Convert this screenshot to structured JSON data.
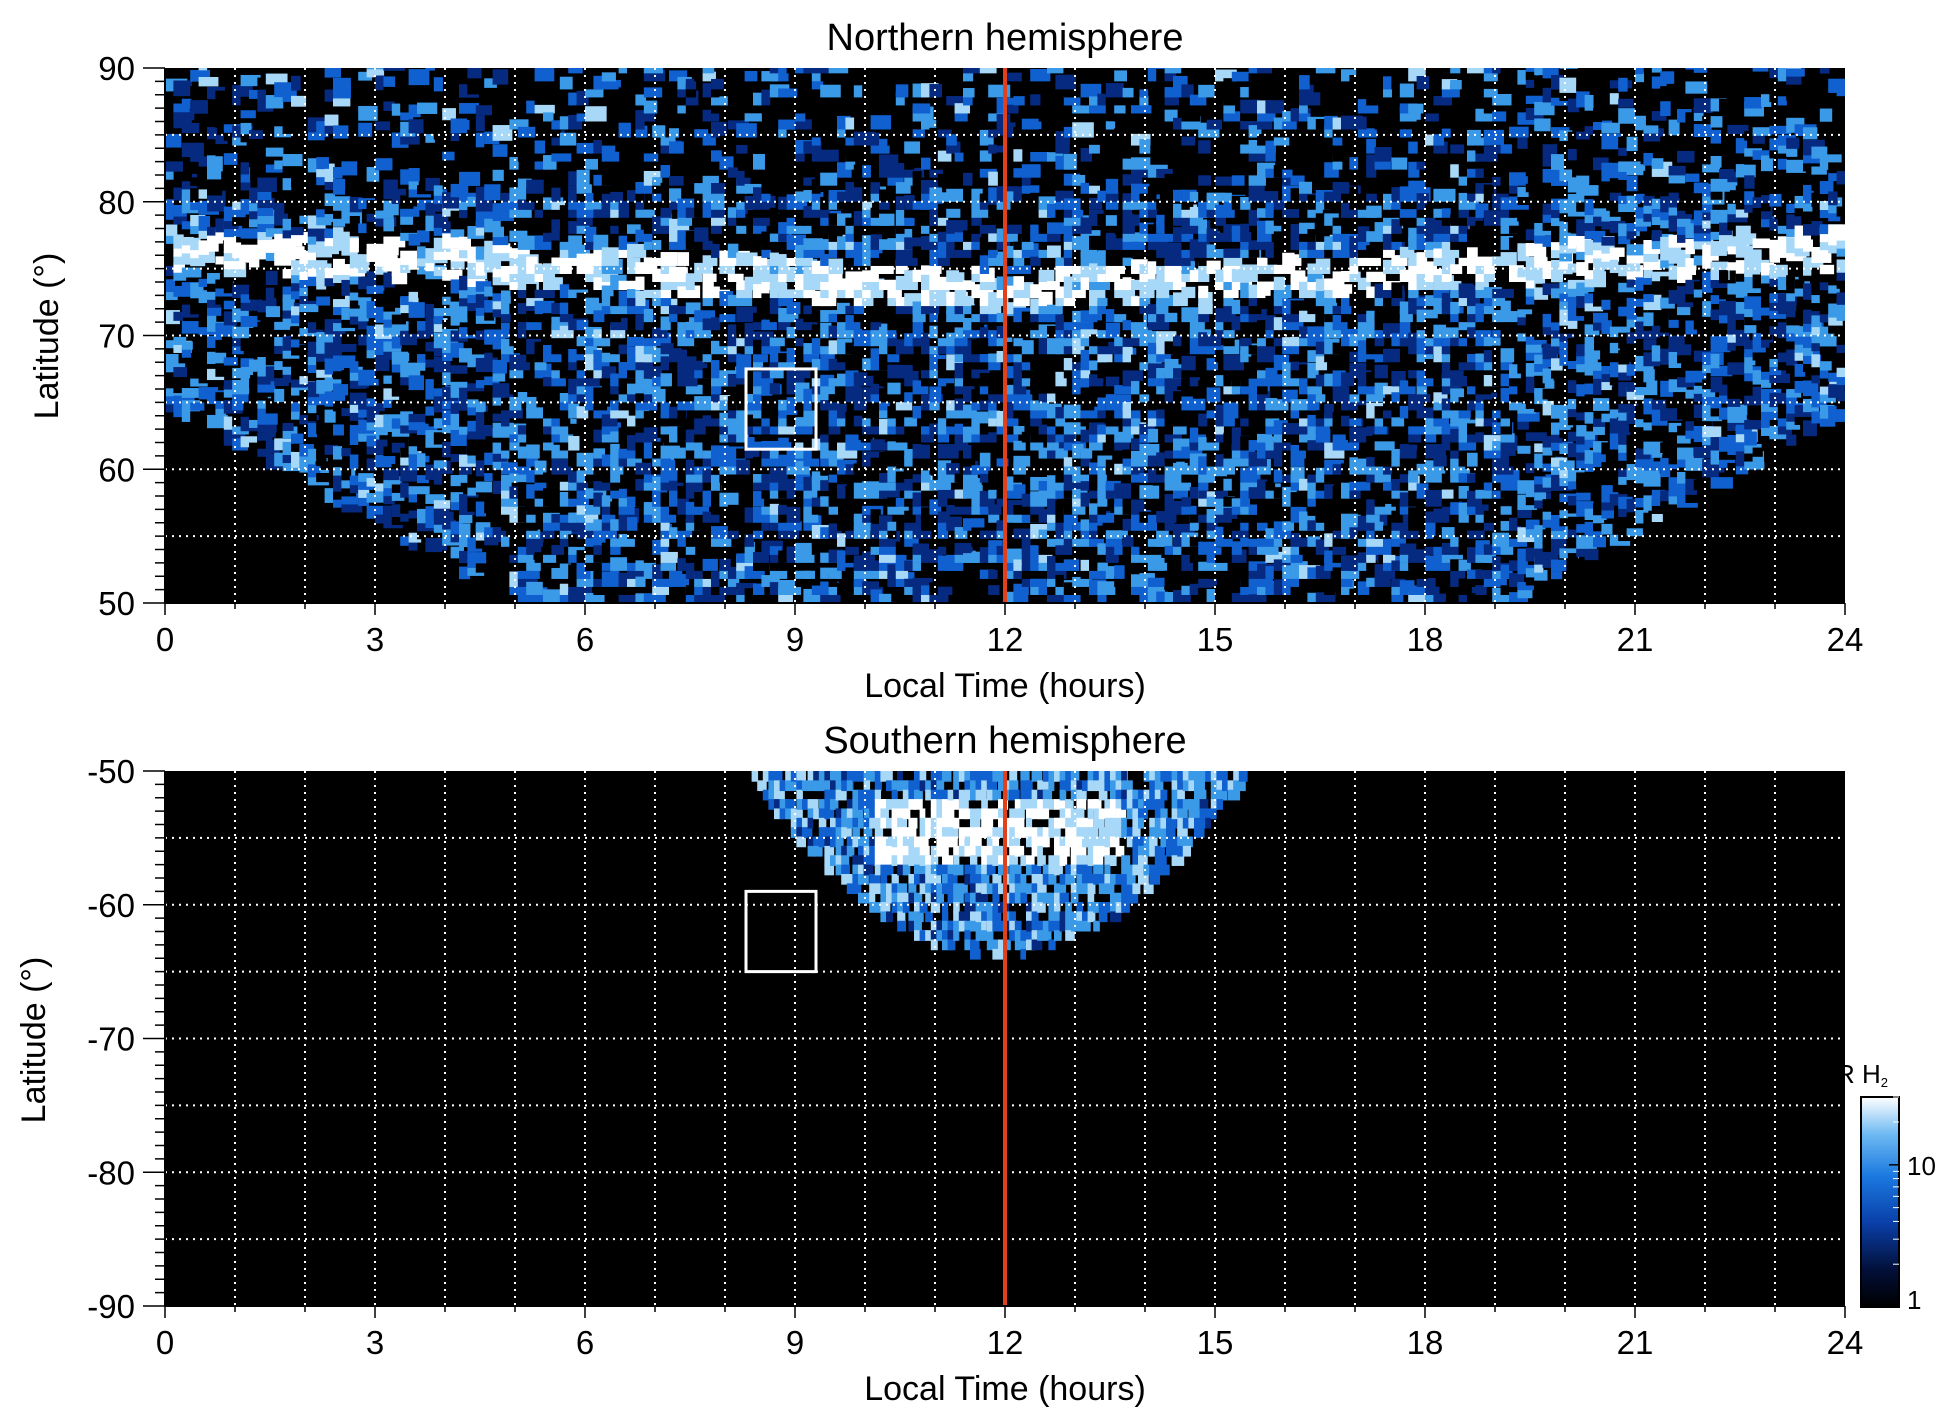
{
  "chart_data": [
    {
      "type": "heatmap",
      "title": "Northern hemisphere",
      "xlabel": "Local Time (hours)",
      "ylabel": "Latitude (°)",
      "xlim": [
        0,
        24
      ],
      "ylim": [
        50,
        90
      ],
      "xticks": [
        "0",
        "3",
        "6",
        "9",
        "12",
        "15",
        "18",
        "21",
        "24"
      ],
      "yticks": [
        "50",
        "60",
        "70",
        "80",
        "90"
      ],
      "grid": true,
      "grid_lines": {
        "x_every_hours": 1,
        "y_every_degrees": 5
      },
      "vertical_line": {
        "x": 12,
        "color": "#e0401c"
      },
      "box": {
        "x": [
          8.3,
          9.3
        ],
        "y": [
          61.5,
          67.5
        ],
        "color": "#ffffff"
      },
      "auroral_oval": {
        "latitude_noon": 73,
        "latitude_dawn_dusk": 76,
        "coverage_boundary_latitude": 65
      },
      "colormap": [
        "#000000",
        "#062a80",
        "#1060d0",
        "#3a9ae8",
        "#a8d8f8",
        "#ffffff"
      ]
    },
    {
      "type": "heatmap",
      "title": "Southern hemisphere",
      "xlabel": "Local Time (hours)",
      "ylabel": "Latitude (°)",
      "xlim": [
        0,
        24
      ],
      "ylim": [
        -90,
        -50
      ],
      "xticks": [
        "0",
        "3",
        "6",
        "9",
        "12",
        "15",
        "18",
        "21",
        "24"
      ],
      "yticks": [
        "-50",
        "-60",
        "-70",
        "-80",
        "-90"
      ],
      "grid": true,
      "grid_lines": {
        "x_every_hours": 1,
        "y_every_degrees": 5
      },
      "vertical_line": {
        "x": 12,
        "color": "#e0401c"
      },
      "box": {
        "x": [
          8.3,
          9.3
        ],
        "y": [
          -65,
          -59
        ],
        "color": "#ffffff"
      },
      "coverage": {
        "local_time_range": [
          8.3,
          15.4
        ],
        "lowest_latitude": -63.5,
        "bright_band_latitude": -54
      },
      "colormap": [
        "#000000",
        "#062a80",
        "#1060d0",
        "#3a9ae8",
        "#a8d8f8",
        "#ffffff"
      ]
    }
  ],
  "colorbar": {
    "label_main": "kR H",
    "label_sub": "2",
    "scale": "log",
    "range": [
      1,
      30
    ],
    "ticks": [
      "10",
      "1"
    ],
    "tick_values": [
      10,
      1
    ]
  }
}
